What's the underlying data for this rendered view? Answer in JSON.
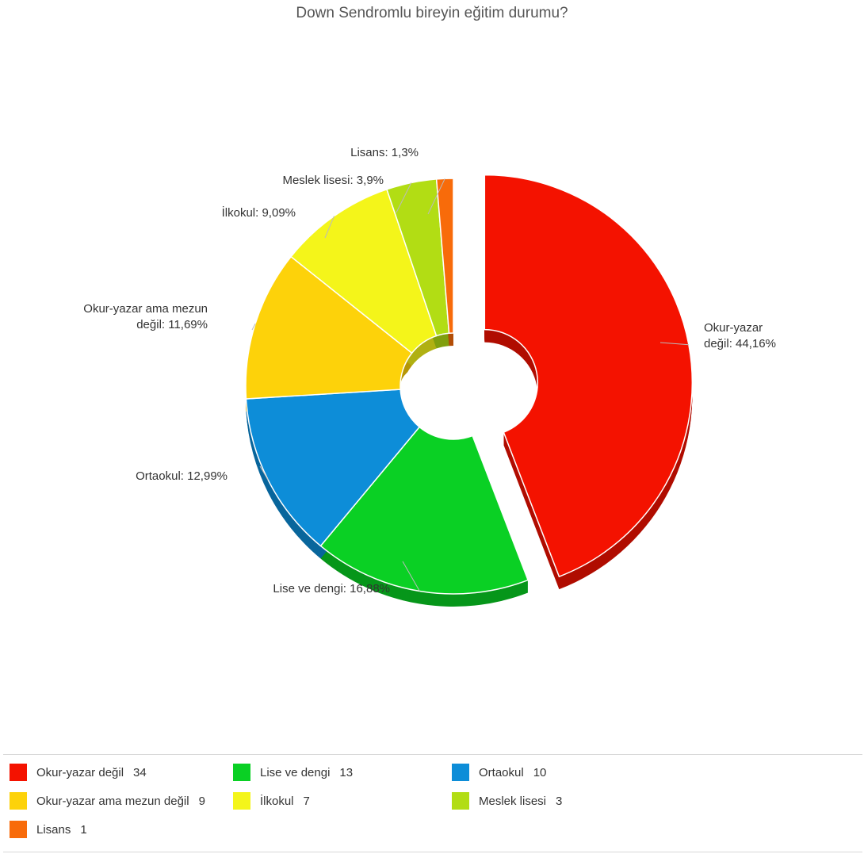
{
  "chart_data": {
    "type": "pie",
    "title": "Down Sendromlu bireyin eğitim durumu?",
    "slices": [
      {
        "name": "Okur-yazar değil",
        "value": 34,
        "label": "Okur-yazar değil: 44,16%",
        "color": "#f41200"
      },
      {
        "name": "Lise ve dengi",
        "value": 13,
        "label": "Lise ve dengi: 16,88%",
        "color": "#0ad024"
      },
      {
        "name": "Ortaokul",
        "value": 10,
        "label": "Ortaokul: 12,99%",
        "color": "#0d8dd8"
      },
      {
        "name": "Okur-yazar ama mezun değil",
        "value": 9,
        "label": "Okur-yazar ama mezun değil: 11,69%",
        "color": "#fdd20a"
      },
      {
        "name": "İlkokul",
        "value": 7,
        "label": "İlkokul: 9,09%",
        "color": "#f4f51a"
      },
      {
        "name": "Meslek lisesi",
        "value": 3,
        "label": "Meslek lisesi: 3,9%",
        "color": "#b2dd14"
      },
      {
        "name": "Lisans",
        "value": 1,
        "label": "Lisans: 1,3%",
        "color": "#f86b0a"
      }
    ],
    "legend": {
      "placement": "bottom",
      "items": [
        {
          "name": "Okur-yazar değil",
          "count": "34",
          "color": "#f41200"
        },
        {
          "name": "Lise ve dengi",
          "count": "13",
          "color": "#0ad024"
        },
        {
          "name": "Ortaokul",
          "count": "10",
          "color": "#0d8dd8"
        },
        {
          "name": "Okur-yazar ama mezun değil",
          "count": "9",
          "color": "#fdd20a"
        },
        {
          "name": "İlkokul",
          "count": "7",
          "color": "#f4f51a"
        },
        {
          "name": "Meslek lisesi",
          "count": "3",
          "color": "#b2dd14"
        },
        {
          "name": "Lisans",
          "count": "1",
          "color": "#f86b0a"
        }
      ]
    }
  }
}
